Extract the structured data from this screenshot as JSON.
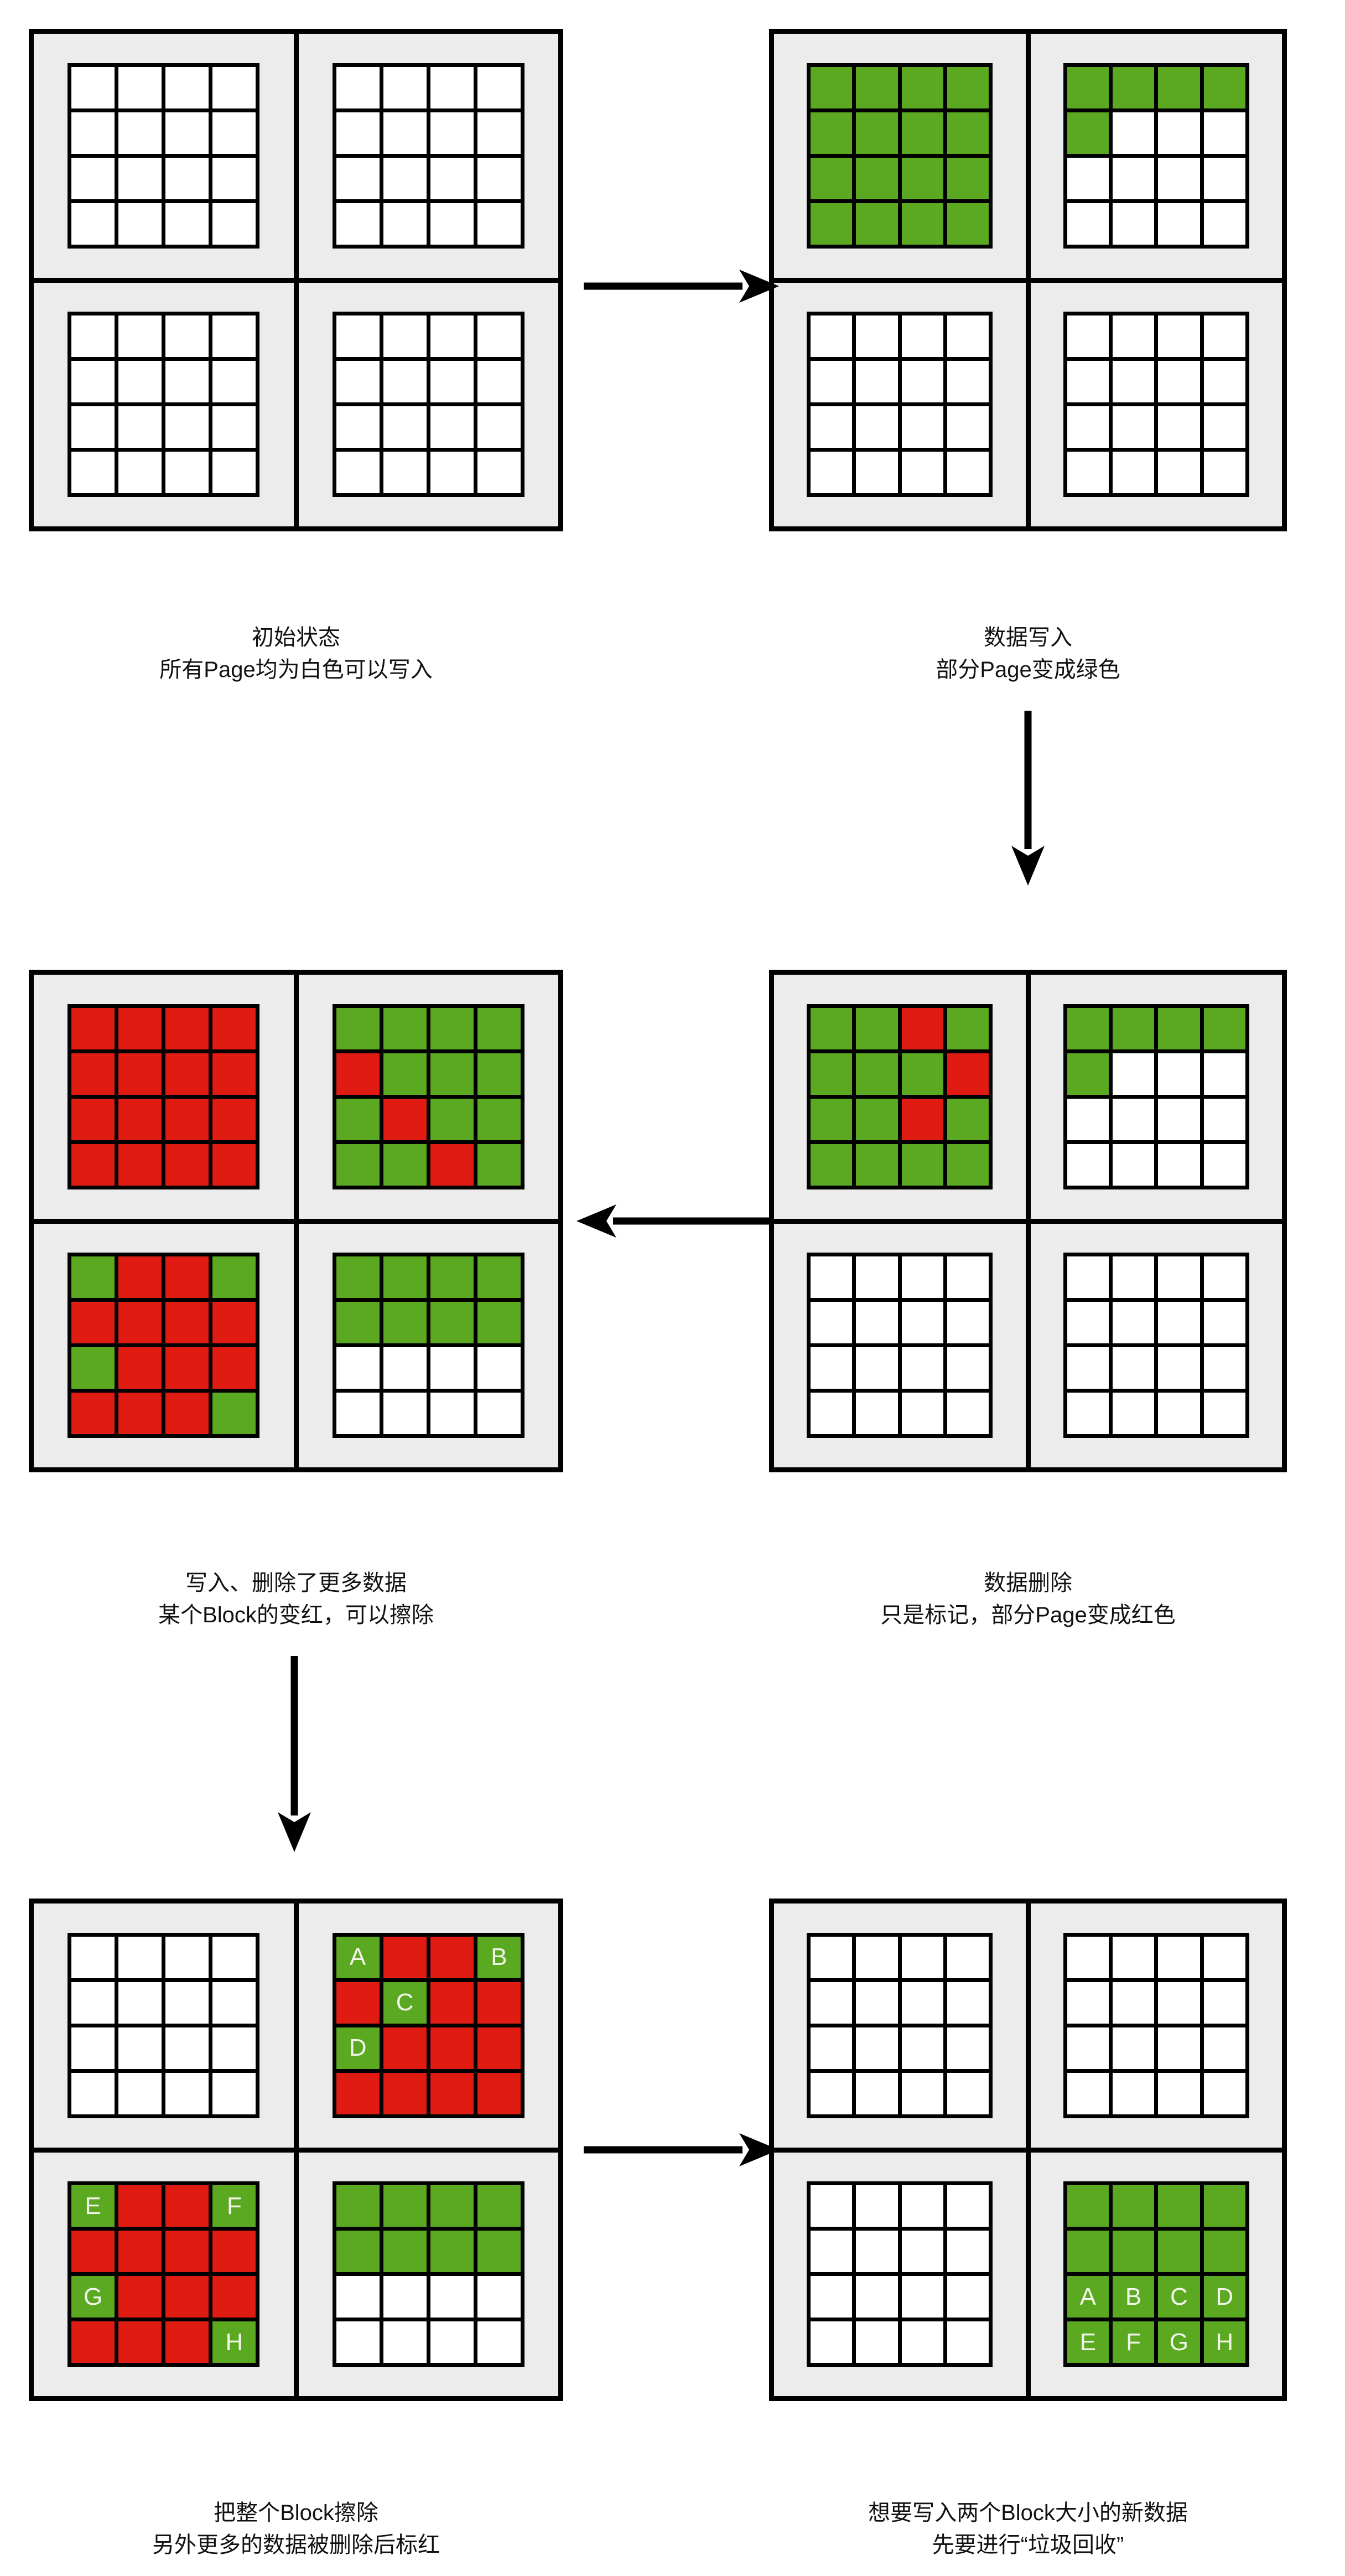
{
  "colors": {
    "page_free": "#ffffff",
    "page_valid": "#5ba821",
    "page_invalid": "#e01b12",
    "block_bg": "#ececec",
    "line": "#000000",
    "label_text": "#f2f5ea",
    "caption_text": "#111111",
    "canvas_bg": "#ffffff"
  },
  "panels": [
    {
      "name": "initial-state",
      "caption_line1": "初始状态",
      "caption_line2": "所有Page均为白色可以写入",
      "blocks": [
        [
          "w",
          "w",
          "w",
          "w",
          "w",
          "w",
          "w",
          "w",
          "w",
          "w",
          "w",
          "w",
          "w",
          "w",
          "w",
          "w"
        ],
        [
          "w",
          "w",
          "w",
          "w",
          "w",
          "w",
          "w",
          "w",
          "w",
          "w",
          "w",
          "w",
          "w",
          "w",
          "w",
          "w"
        ],
        [
          "w",
          "w",
          "w",
          "w",
          "w",
          "w",
          "w",
          "w",
          "w",
          "w",
          "w",
          "w",
          "w",
          "w",
          "w",
          "w"
        ],
        [
          "w",
          "w",
          "w",
          "w",
          "w",
          "w",
          "w",
          "w",
          "w",
          "w",
          "w",
          "w",
          "w",
          "w",
          "w",
          "w"
        ]
      ]
    },
    {
      "name": "data-written",
      "caption_line1": "数据写入",
      "caption_line2": "部分Page变成绿色",
      "blocks": [
        [
          "g",
          "g",
          "g",
          "g",
          "g",
          "g",
          "g",
          "g",
          "g",
          "g",
          "g",
          "g",
          "g",
          "g",
          "g",
          "g"
        ],
        [
          "g",
          "g",
          "g",
          "g",
          "g",
          "w",
          "w",
          "w",
          "w",
          "w",
          "w",
          "w",
          "w",
          "w",
          "w",
          "w"
        ],
        [
          "w",
          "w",
          "w",
          "w",
          "w",
          "w",
          "w",
          "w",
          "w",
          "w",
          "w",
          "w",
          "w",
          "w",
          "w",
          "w"
        ],
        [
          "w",
          "w",
          "w",
          "w",
          "w",
          "w",
          "w",
          "w",
          "w",
          "w",
          "w",
          "w",
          "w",
          "w",
          "w",
          "w"
        ]
      ]
    },
    {
      "name": "more-writes-and-deletes",
      "caption_line1": "写入、删除了更多数据",
      "caption_line2": "某个Block的变红，可以擦除",
      "blocks": [
        [
          "r",
          "r",
          "r",
          "r",
          "r",
          "r",
          "r",
          "r",
          "r",
          "r",
          "r",
          "r",
          "r",
          "r",
          "r",
          "r"
        ],
        [
          "g",
          "g",
          "g",
          "g",
          "r",
          "g",
          "g",
          "g",
          "g",
          "r",
          "g",
          "g",
          "g",
          "g",
          "r",
          "g"
        ],
        [
          "g",
          "r",
          "r",
          "g",
          "r",
          "r",
          "r",
          "r",
          "g",
          "r",
          "r",
          "r",
          "r",
          "r",
          "r",
          "g"
        ],
        [
          "g",
          "g",
          "g",
          "g",
          "g",
          "g",
          "g",
          "g",
          "w",
          "w",
          "w",
          "w",
          "w",
          "w",
          "w",
          "w"
        ]
      ]
    },
    {
      "name": "data-deleted",
      "caption_line1": "数据删除",
      "caption_line2": "只是标记，部分Page变成红色",
      "blocks": [
        [
          "g",
          "g",
          "r",
          "g",
          "g",
          "g",
          "g",
          "r",
          "g",
          "g",
          "r",
          "g",
          "g",
          "g",
          "g",
          "g"
        ],
        [
          "g",
          "g",
          "g",
          "g",
          "g",
          "w",
          "w",
          "w",
          "w",
          "w",
          "w",
          "w",
          "w",
          "w",
          "w",
          "w"
        ],
        [
          "w",
          "w",
          "w",
          "w",
          "w",
          "w",
          "w",
          "w",
          "w",
          "w",
          "w",
          "w",
          "w",
          "w",
          "w",
          "w"
        ],
        [
          "w",
          "w",
          "w",
          "w",
          "w",
          "w",
          "w",
          "w",
          "w",
          "w",
          "w",
          "w",
          "w",
          "w",
          "w",
          "w"
        ]
      ]
    },
    {
      "name": "block-erased",
      "caption_line1": "把整个Block擦除",
      "caption_line2": "另外更多的数据被删除后标红",
      "blocks": [
        [
          "w",
          "w",
          "w",
          "w",
          "w",
          "w",
          "w",
          "w",
          "w",
          "w",
          "w",
          "w",
          "w",
          "w",
          "w",
          "w"
        ],
        [
          "g:A",
          "r",
          "r",
          "g:B",
          "r",
          "g:C",
          "r",
          "r",
          "g:D",
          "r",
          "r",
          "r",
          "r",
          "r",
          "r",
          "r"
        ],
        [
          "g:E",
          "r",
          "r",
          "g:F",
          "r",
          "r",
          "r",
          "r",
          "g:G",
          "r",
          "r",
          "r",
          "r",
          "r",
          "r",
          "g:H"
        ],
        [
          "g",
          "g",
          "g",
          "g",
          "g",
          "g",
          "g",
          "g",
          "w",
          "w",
          "w",
          "w",
          "w",
          "w",
          "w",
          "w"
        ]
      ]
    },
    {
      "name": "garbage-collection",
      "caption_line1": "想要写入两个Block大小的新数据",
      "caption_line2": "先要进行“垃圾回收”",
      "blocks": [
        [
          "w",
          "w",
          "w",
          "w",
          "w",
          "w",
          "w",
          "w",
          "w",
          "w",
          "w",
          "w",
          "w",
          "w",
          "w",
          "w"
        ],
        [
          "w",
          "w",
          "w",
          "w",
          "w",
          "w",
          "w",
          "w",
          "w",
          "w",
          "w",
          "w",
          "w",
          "w",
          "w",
          "w"
        ],
        [
          "w",
          "w",
          "w",
          "w",
          "w",
          "w",
          "w",
          "w",
          "w",
          "w",
          "w",
          "w",
          "w",
          "w",
          "w",
          "w"
        ],
        [
          "g",
          "g",
          "g",
          "g",
          "g",
          "g",
          "g",
          "g",
          "g:A",
          "g:B",
          "g:C",
          "g:D",
          "g:E",
          "g:F",
          "g:G",
          "g:H"
        ]
      ]
    }
  ],
  "arrows": [
    {
      "name": "arrow-initial-to-written",
      "direction": "right"
    },
    {
      "name": "arrow-written-to-deleted",
      "direction": "down"
    },
    {
      "name": "arrow-deleted-to-more",
      "direction": "left"
    },
    {
      "name": "arrow-more-to-erased",
      "direction": "down"
    },
    {
      "name": "arrow-erased-to-gc",
      "direction": "right"
    }
  ]
}
